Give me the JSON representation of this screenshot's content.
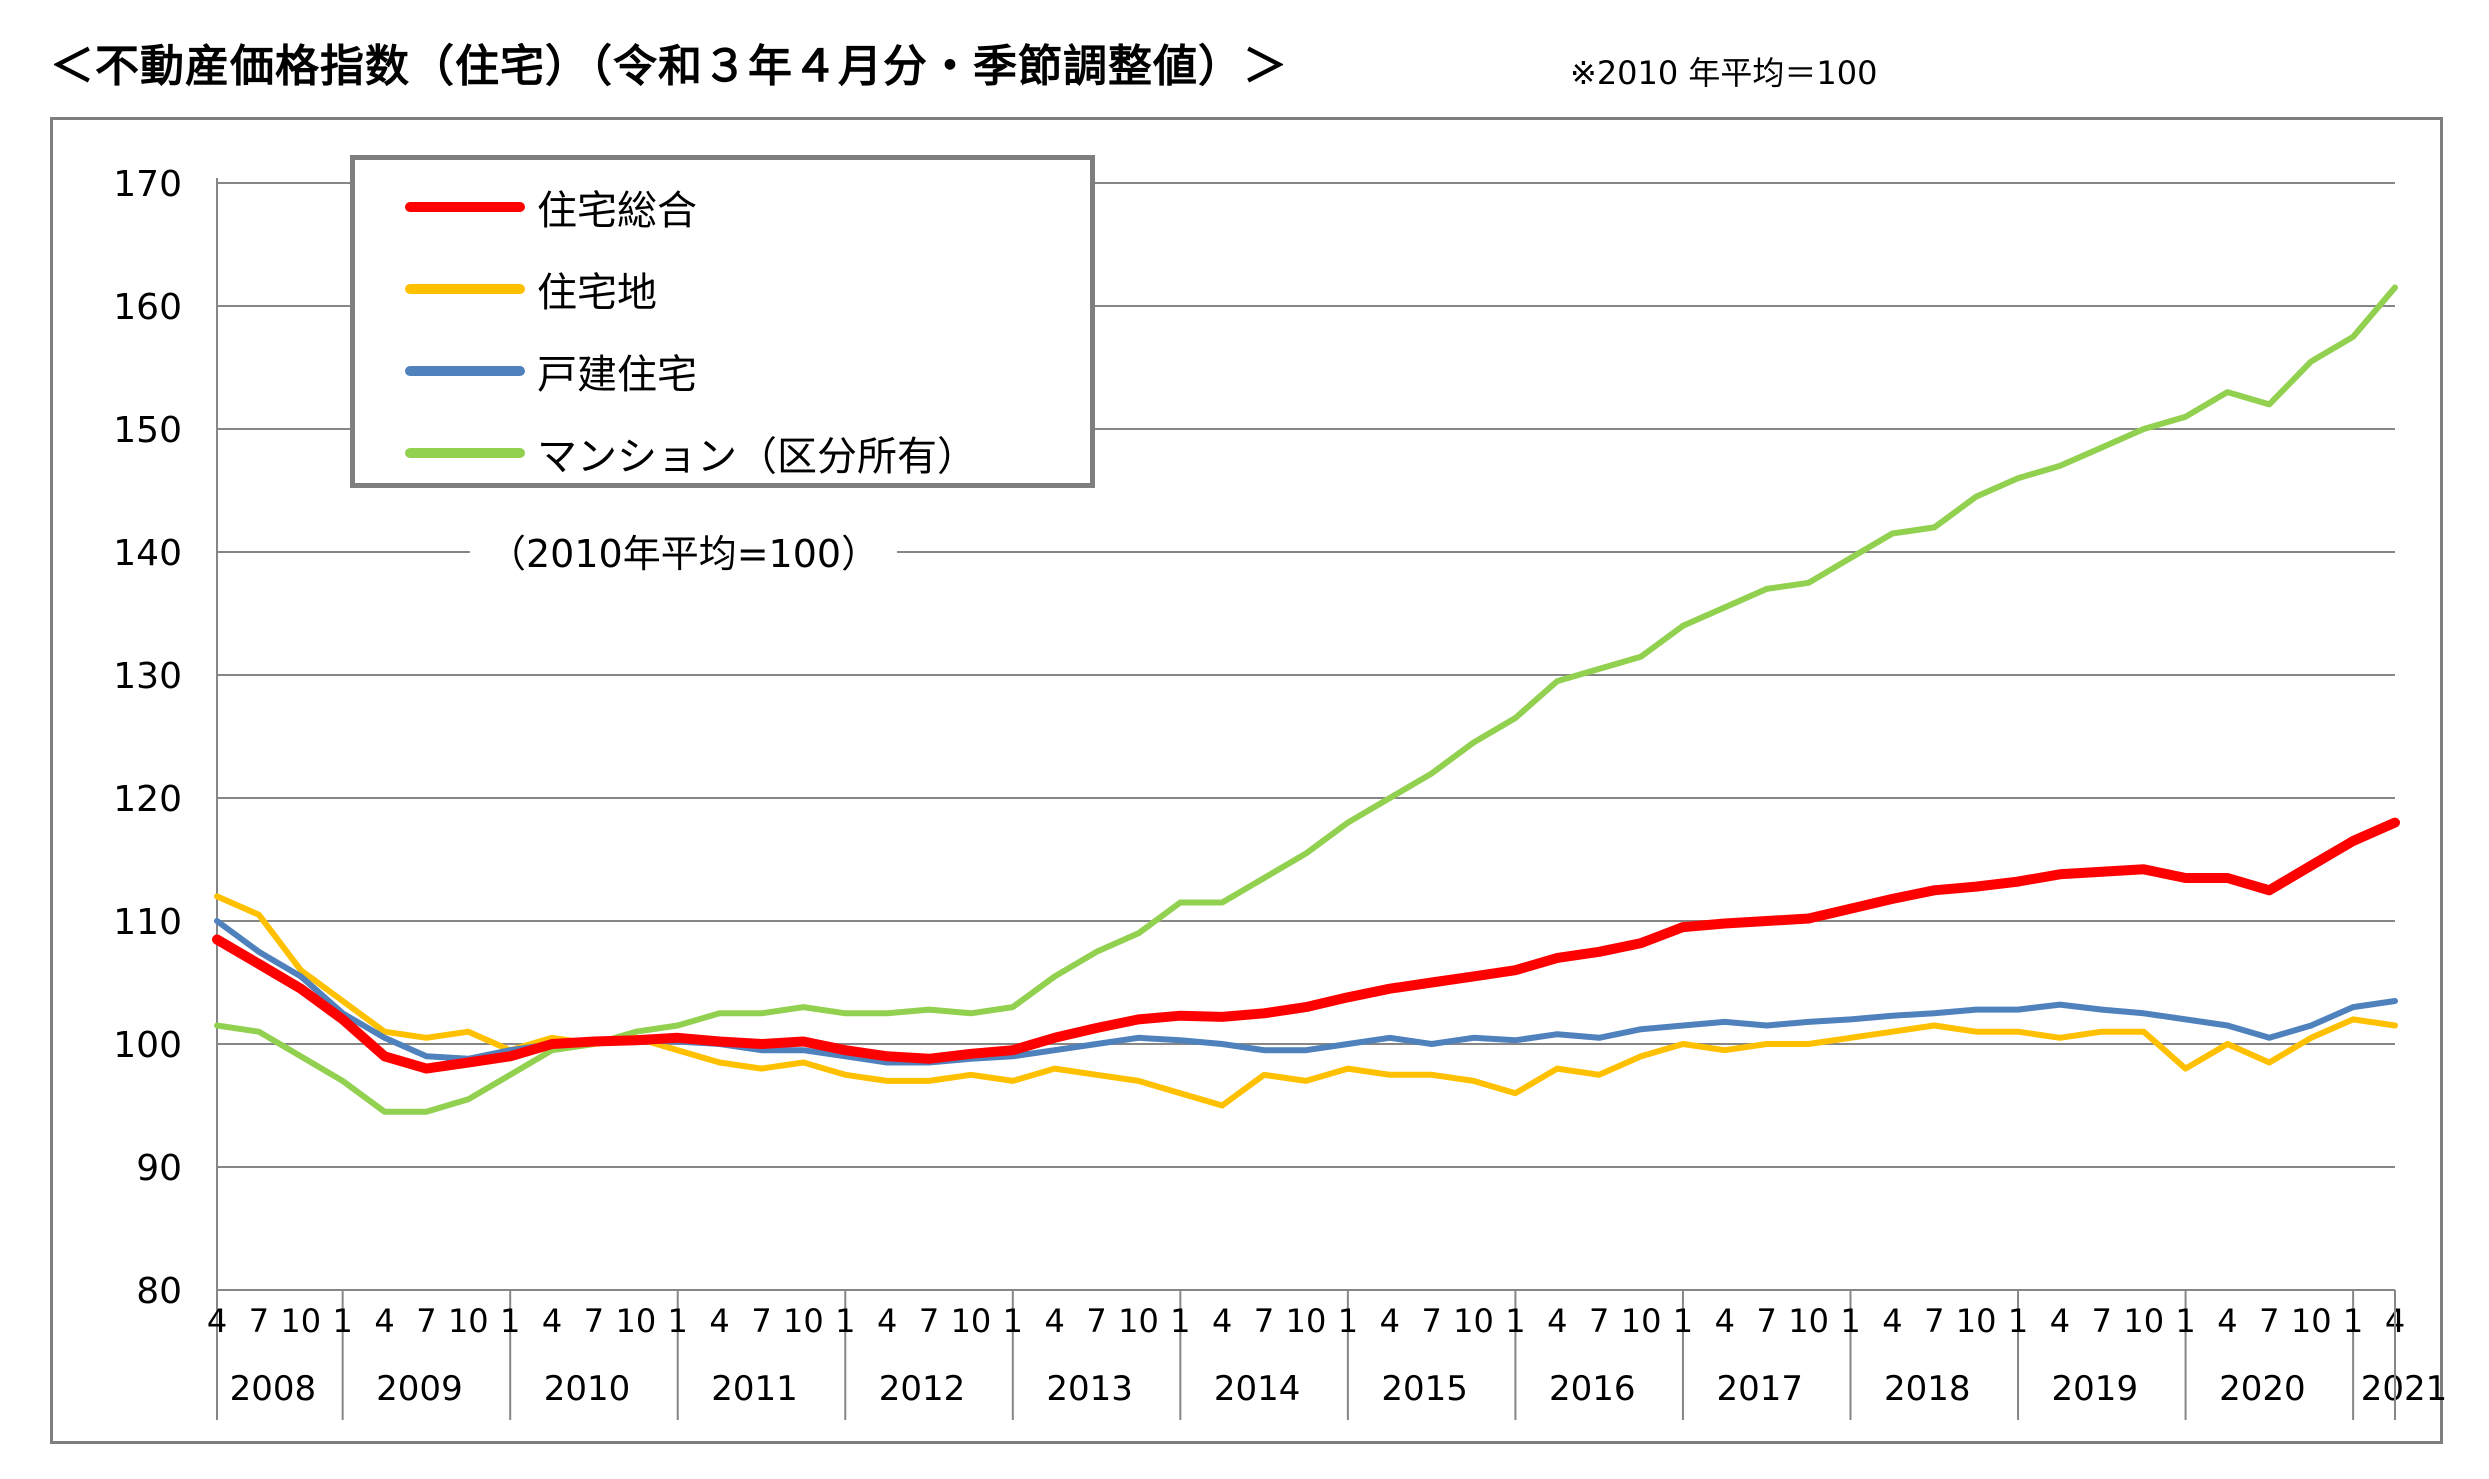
{
  "header": {
    "title": "＜不動産価格指数（住宅）（令和３年４月分・季節調整値）＞",
    "note": "※2010 年平均＝100"
  },
  "baseline_note": "（2010年平均=100）",
  "chart_data": {
    "type": "line",
    "title": "＜不動産価格指数（住宅）（令和３年４月分・季節調整値）＞",
    "xlabel": "",
    "ylabel": "",
    "ylim": [
      80,
      170
    ],
    "yticks": [
      80,
      90,
      100,
      110,
      120,
      130,
      140,
      150,
      160,
      170
    ],
    "grid": true,
    "legend_position": "top-left",
    "x_start": "2008-04",
    "x_end": "2021-04",
    "month_tick_labels": [
      "1",
      "4",
      "7",
      "10"
    ],
    "years": [
      {
        "label": "2008",
        "first_month": 4
      },
      {
        "label": "2009",
        "first_month": 1
      },
      {
        "label": "2010",
        "first_month": 1
      },
      {
        "label": "2011",
        "first_month": 1
      },
      {
        "label": "2012",
        "first_month": 1
      },
      {
        "label": "2013",
        "first_month": 1
      },
      {
        "label": "2014",
        "first_month": 1
      },
      {
        "label": "2015",
        "first_month": 1
      },
      {
        "label": "2016",
        "first_month": 1
      },
      {
        "label": "2017",
        "first_month": 1
      },
      {
        "label": "2018",
        "first_month": 1
      },
      {
        "label": "2019",
        "first_month": 1
      },
      {
        "label": "2020",
        "first_month": 1
      },
      {
        "label": "2021",
        "first_month": 1,
        "last_month": 4
      }
    ],
    "series": [
      {
        "name": "住宅総合",
        "color": "#ff0000",
        "points": [
          [
            "2008-04",
            108.5
          ],
          [
            "2008-07",
            106.5
          ],
          [
            "2008-10",
            104.5
          ],
          [
            "2009-01",
            102.0
          ],
          [
            "2009-04",
            99.0
          ],
          [
            "2009-07",
            98.0
          ],
          [
            "2009-10",
            98.5
          ],
          [
            "2010-01",
            99.0
          ],
          [
            "2010-04",
            100.0
          ],
          [
            "2010-07",
            100.2
          ],
          [
            "2010-10",
            100.3
          ],
          [
            "2011-01",
            100.5
          ],
          [
            "2011-04",
            100.2
          ],
          [
            "2011-07",
            100.0
          ],
          [
            "2011-10",
            100.2
          ],
          [
            "2012-01",
            99.5
          ],
          [
            "2012-04",
            99.0
          ],
          [
            "2012-07",
            98.8
          ],
          [
            "2012-10",
            99.2
          ],
          [
            "2013-01",
            99.5
          ],
          [
            "2013-04",
            100.5
          ],
          [
            "2013-07",
            101.3
          ],
          [
            "2013-10",
            102.0
          ],
          [
            "2014-01",
            102.3
          ],
          [
            "2014-04",
            102.2
          ],
          [
            "2014-07",
            102.5
          ],
          [
            "2014-10",
            103.0
          ],
          [
            "2015-01",
            103.8
          ],
          [
            "2015-04",
            104.5
          ],
          [
            "2015-07",
            105.0
          ],
          [
            "2015-10",
            105.5
          ],
          [
            "2016-01",
            106.0
          ],
          [
            "2016-04",
            107.0
          ],
          [
            "2016-07",
            107.5
          ],
          [
            "2016-10",
            108.2
          ],
          [
            "2017-01",
            109.5
          ],
          [
            "2017-04",
            109.8
          ],
          [
            "2017-07",
            110.0
          ],
          [
            "2017-10",
            110.2
          ],
          [
            "2018-01",
            111.0
          ],
          [
            "2018-04",
            111.8
          ],
          [
            "2018-07",
            112.5
          ],
          [
            "2018-10",
            112.8
          ],
          [
            "2019-01",
            113.2
          ],
          [
            "2019-04",
            113.8
          ],
          [
            "2019-07",
            114.0
          ],
          [
            "2019-10",
            114.2
          ],
          [
            "2020-01",
            113.5
          ],
          [
            "2020-04",
            113.5
          ],
          [
            "2020-07",
            112.5
          ],
          [
            "2020-10",
            114.5
          ],
          [
            "2021-01",
            116.5
          ],
          [
            "2021-04",
            118.0
          ]
        ]
      },
      {
        "name": "住宅地",
        "color": "#ffc000",
        "points": [
          [
            "2008-04",
            112.0
          ],
          [
            "2008-07",
            110.5
          ],
          [
            "2008-10",
            106.0
          ],
          [
            "2009-01",
            103.5
          ],
          [
            "2009-04",
            101.0
          ],
          [
            "2009-07",
            100.5
          ],
          [
            "2009-10",
            101.0
          ],
          [
            "2010-01",
            99.5
          ],
          [
            "2010-04",
            100.5
          ],
          [
            "2010-07",
            100.0
          ],
          [
            "2010-10",
            100.5
          ],
          [
            "2011-01",
            99.5
          ],
          [
            "2011-04",
            98.5
          ],
          [
            "2011-07",
            98.0
          ],
          [
            "2011-10",
            98.5
          ],
          [
            "2012-01",
            97.5
          ],
          [
            "2012-04",
            97.0
          ],
          [
            "2012-07",
            97.0
          ],
          [
            "2012-10",
            97.5
          ],
          [
            "2013-01",
            97.0
          ],
          [
            "2013-04",
            98.0
          ],
          [
            "2013-07",
            97.5
          ],
          [
            "2013-10",
            97.0
          ],
          [
            "2014-01",
            96.0
          ],
          [
            "2014-04",
            95.0
          ],
          [
            "2014-07",
            97.5
          ],
          [
            "2014-10",
            97.0
          ],
          [
            "2015-01",
            98.0
          ],
          [
            "2015-04",
            97.5
          ],
          [
            "2015-07",
            97.5
          ],
          [
            "2015-10",
            97.0
          ],
          [
            "2016-01",
            96.0
          ],
          [
            "2016-04",
            98.0
          ],
          [
            "2016-07",
            97.5
          ],
          [
            "2016-10",
            99.0
          ],
          [
            "2017-01",
            100.0
          ],
          [
            "2017-04",
            99.5
          ],
          [
            "2017-07",
            100.0
          ],
          [
            "2017-10",
            100.0
          ],
          [
            "2018-01",
            100.5
          ],
          [
            "2018-04",
            101.0
          ],
          [
            "2018-07",
            101.5
          ],
          [
            "2018-10",
            101.0
          ],
          [
            "2019-01",
            101.0
          ],
          [
            "2019-04",
            100.5
          ],
          [
            "2019-07",
            101.0
          ],
          [
            "2019-10",
            101.0
          ],
          [
            "2020-01",
            98.0
          ],
          [
            "2020-04",
            100.0
          ],
          [
            "2020-07",
            98.5
          ],
          [
            "2020-10",
            100.5
          ],
          [
            "2021-01",
            102.0
          ],
          [
            "2021-04",
            101.5
          ]
        ]
      },
      {
        "name": "戸建住宅",
        "color": "#4f81bd",
        "points": [
          [
            "2008-04",
            110.0
          ],
          [
            "2008-07",
            107.5
          ],
          [
            "2008-10",
            105.5
          ],
          [
            "2009-01",
            102.5
          ],
          [
            "2009-04",
            100.5
          ],
          [
            "2009-07",
            99.0
          ],
          [
            "2009-10",
            98.8
          ],
          [
            "2010-01",
            99.5
          ],
          [
            "2010-04",
            100.0
          ],
          [
            "2010-07",
            100.2
          ],
          [
            "2010-10",
            100.3
          ],
          [
            "2011-01",
            100.2
          ],
          [
            "2011-04",
            100.0
          ],
          [
            "2011-07",
            99.5
          ],
          [
            "2011-10",
            99.5
          ],
          [
            "2012-01",
            99.0
          ],
          [
            "2012-04",
            98.5
          ],
          [
            "2012-07",
            98.5
          ],
          [
            "2012-10",
            98.8
          ],
          [
            "2013-01",
            99.0
          ],
          [
            "2013-04",
            99.5
          ],
          [
            "2013-07",
            100.0
          ],
          [
            "2013-10",
            100.5
          ],
          [
            "2014-01",
            100.3
          ],
          [
            "2014-04",
            100.0
          ],
          [
            "2014-07",
            99.5
          ],
          [
            "2014-10",
            99.5
          ],
          [
            "2015-01",
            100.0
          ],
          [
            "2015-04",
            100.5
          ],
          [
            "2015-07",
            100.0
          ],
          [
            "2015-10",
            100.5
          ],
          [
            "2016-01",
            100.3
          ],
          [
            "2016-04",
            100.8
          ],
          [
            "2016-07",
            100.5
          ],
          [
            "2016-10",
            101.2
          ],
          [
            "2017-01",
            101.5
          ],
          [
            "2017-04",
            101.8
          ],
          [
            "2017-07",
            101.5
          ],
          [
            "2017-10",
            101.8
          ],
          [
            "2018-01",
            102.0
          ],
          [
            "2018-04",
            102.3
          ],
          [
            "2018-07",
            102.5
          ],
          [
            "2018-10",
            102.8
          ],
          [
            "2019-01",
            102.8
          ],
          [
            "2019-04",
            103.2
          ],
          [
            "2019-07",
            102.8
          ],
          [
            "2019-10",
            102.5
          ],
          [
            "2020-01",
            102.0
          ],
          [
            "2020-04",
            101.5
          ],
          [
            "2020-07",
            100.5
          ],
          [
            "2020-10",
            101.5
          ],
          [
            "2021-01",
            103.0
          ],
          [
            "2021-04",
            103.5
          ]
        ]
      },
      {
        "name": "マンション（区分所有）",
        "color": "#92d050",
        "points": [
          [
            "2008-04",
            101.5
          ],
          [
            "2008-07",
            101.0
          ],
          [
            "2008-10",
            99.0
          ],
          [
            "2009-01",
            97.0
          ],
          [
            "2009-04",
            94.5
          ],
          [
            "2009-07",
            94.5
          ],
          [
            "2009-10",
            95.5
          ],
          [
            "2010-01",
            97.5
          ],
          [
            "2010-04",
            99.5
          ],
          [
            "2010-07",
            100.0
          ],
          [
            "2010-10",
            101.0
          ],
          [
            "2011-01",
            101.5
          ],
          [
            "2011-04",
            102.5
          ],
          [
            "2011-07",
            102.5
          ],
          [
            "2011-10",
            103.0
          ],
          [
            "2012-01",
            102.5
          ],
          [
            "2012-04",
            102.5
          ],
          [
            "2012-07",
            102.8
          ],
          [
            "2012-10",
            102.5
          ],
          [
            "2013-01",
            103.0
          ],
          [
            "2013-04",
            105.5
          ],
          [
            "2013-07",
            107.5
          ],
          [
            "2013-10",
            109.0
          ],
          [
            "2014-01",
            111.5
          ],
          [
            "2014-04",
            111.5
          ],
          [
            "2014-07",
            113.5
          ],
          [
            "2014-10",
            115.5
          ],
          [
            "2015-01",
            118.0
          ],
          [
            "2015-04",
            120.0
          ],
          [
            "2015-07",
            122.0
          ],
          [
            "2015-10",
            124.5
          ],
          [
            "2016-01",
            126.5
          ],
          [
            "2016-04",
            129.5
          ],
          [
            "2016-07",
            130.5
          ],
          [
            "2016-10",
            131.5
          ],
          [
            "2017-01",
            134.0
          ],
          [
            "2017-04",
            135.5
          ],
          [
            "2017-07",
            137.0
          ],
          [
            "2017-10",
            137.5
          ],
          [
            "2018-01",
            139.5
          ],
          [
            "2018-04",
            141.5
          ],
          [
            "2018-07",
            142.0
          ],
          [
            "2018-10",
            144.5
          ],
          [
            "2019-01",
            146.0
          ],
          [
            "2019-04",
            147.0
          ],
          [
            "2019-07",
            148.5
          ],
          [
            "2019-10",
            150.0
          ],
          [
            "2020-01",
            151.0
          ],
          [
            "2020-04",
            153.0
          ],
          [
            "2020-07",
            152.0
          ],
          [
            "2020-10",
            155.5
          ],
          [
            "2021-01",
            157.5
          ],
          [
            "2021-04",
            161.5
          ]
        ]
      }
    ]
  }
}
